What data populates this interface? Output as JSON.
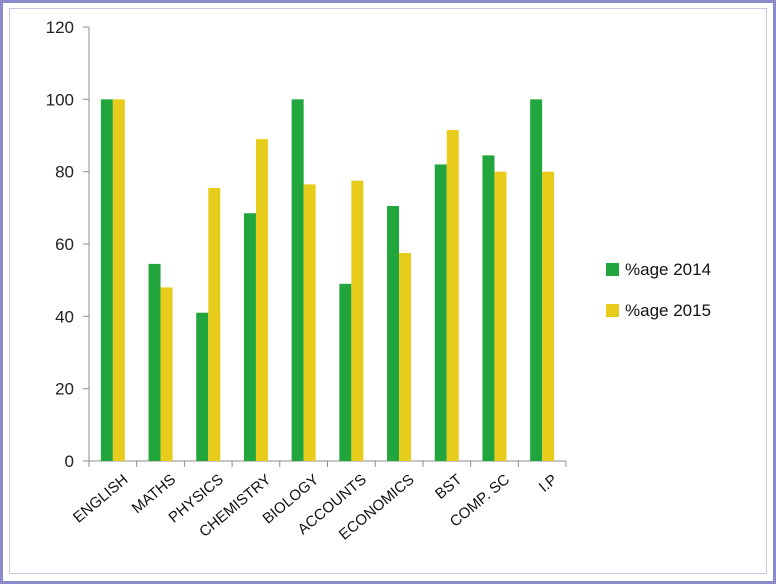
{
  "chart_data": {
    "type": "bar",
    "title": "",
    "xlabel": "",
    "ylabel": "",
    "ylim": [
      0,
      120
    ],
    "yticks": [
      0,
      20,
      40,
      60,
      80,
      100,
      120
    ],
    "grid": false,
    "legend_position": "right",
    "categories": [
      "ENGLISH",
      "MATHS",
      "PHYSICS",
      "CHEMISTRY",
      "BIOLOGY",
      "ACCOUNTS",
      "ECONOMICS",
      "BST",
      "COMP. SC",
      "I.P"
    ],
    "series": [
      {
        "name": "%age 2014",
        "color": "#20a63c",
        "values": [
          100,
          54.5,
          41,
          68.5,
          100,
          49,
          70.5,
          82,
          84.5,
          100
        ]
      },
      {
        "name": "%age 2015",
        "color": "#e8cc1c",
        "values": [
          100,
          48,
          75.5,
          89,
          76.5,
          77.5,
          57.5,
          91.5,
          80,
          80
        ]
      }
    ]
  }
}
